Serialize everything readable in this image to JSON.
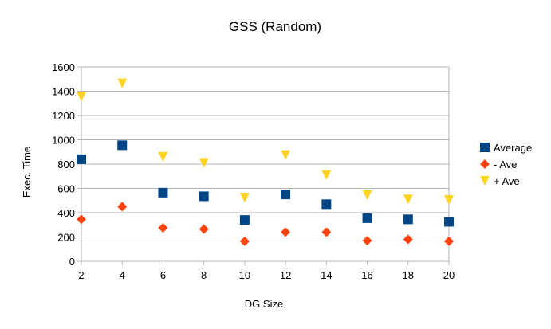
{
  "chart_data": {
    "type": "scatter",
    "title": "GSS (Random)",
    "xlabel": "DG Size",
    "ylabel": "Exec. Time",
    "xlim": [
      2,
      20
    ],
    "ylim": [
      0,
      1600
    ],
    "x_ticks": [
      2,
      4,
      6,
      8,
      10,
      12,
      14,
      16,
      18,
      20
    ],
    "y_ticks": [
      0,
      200,
      400,
      600,
      800,
      1000,
      1200,
      1400,
      1600
    ],
    "grid": "horizontal",
    "legend_position": "right",
    "x": [
      2,
      4,
      6,
      8,
      10,
      12,
      14,
      16,
      18,
      20
    ],
    "series": [
      {
        "name": "Average",
        "marker": "square",
        "color": "#004586",
        "values": [
          840,
          955,
          565,
          535,
          340,
          550,
          470,
          355,
          345,
          325
        ]
      },
      {
        "name": "- Ave",
        "marker": "diamond",
        "color": "#ff420e",
        "values": [
          345,
          450,
          275,
          265,
          165,
          240,
          240,
          170,
          180,
          165
        ]
      },
      {
        "name": "+ Ave",
        "marker": "triangle-down",
        "color": "#ffd320",
        "values": [
          1355,
          1465,
          860,
          810,
          525,
          875,
          710,
          545,
          510,
          505
        ]
      }
    ]
  }
}
